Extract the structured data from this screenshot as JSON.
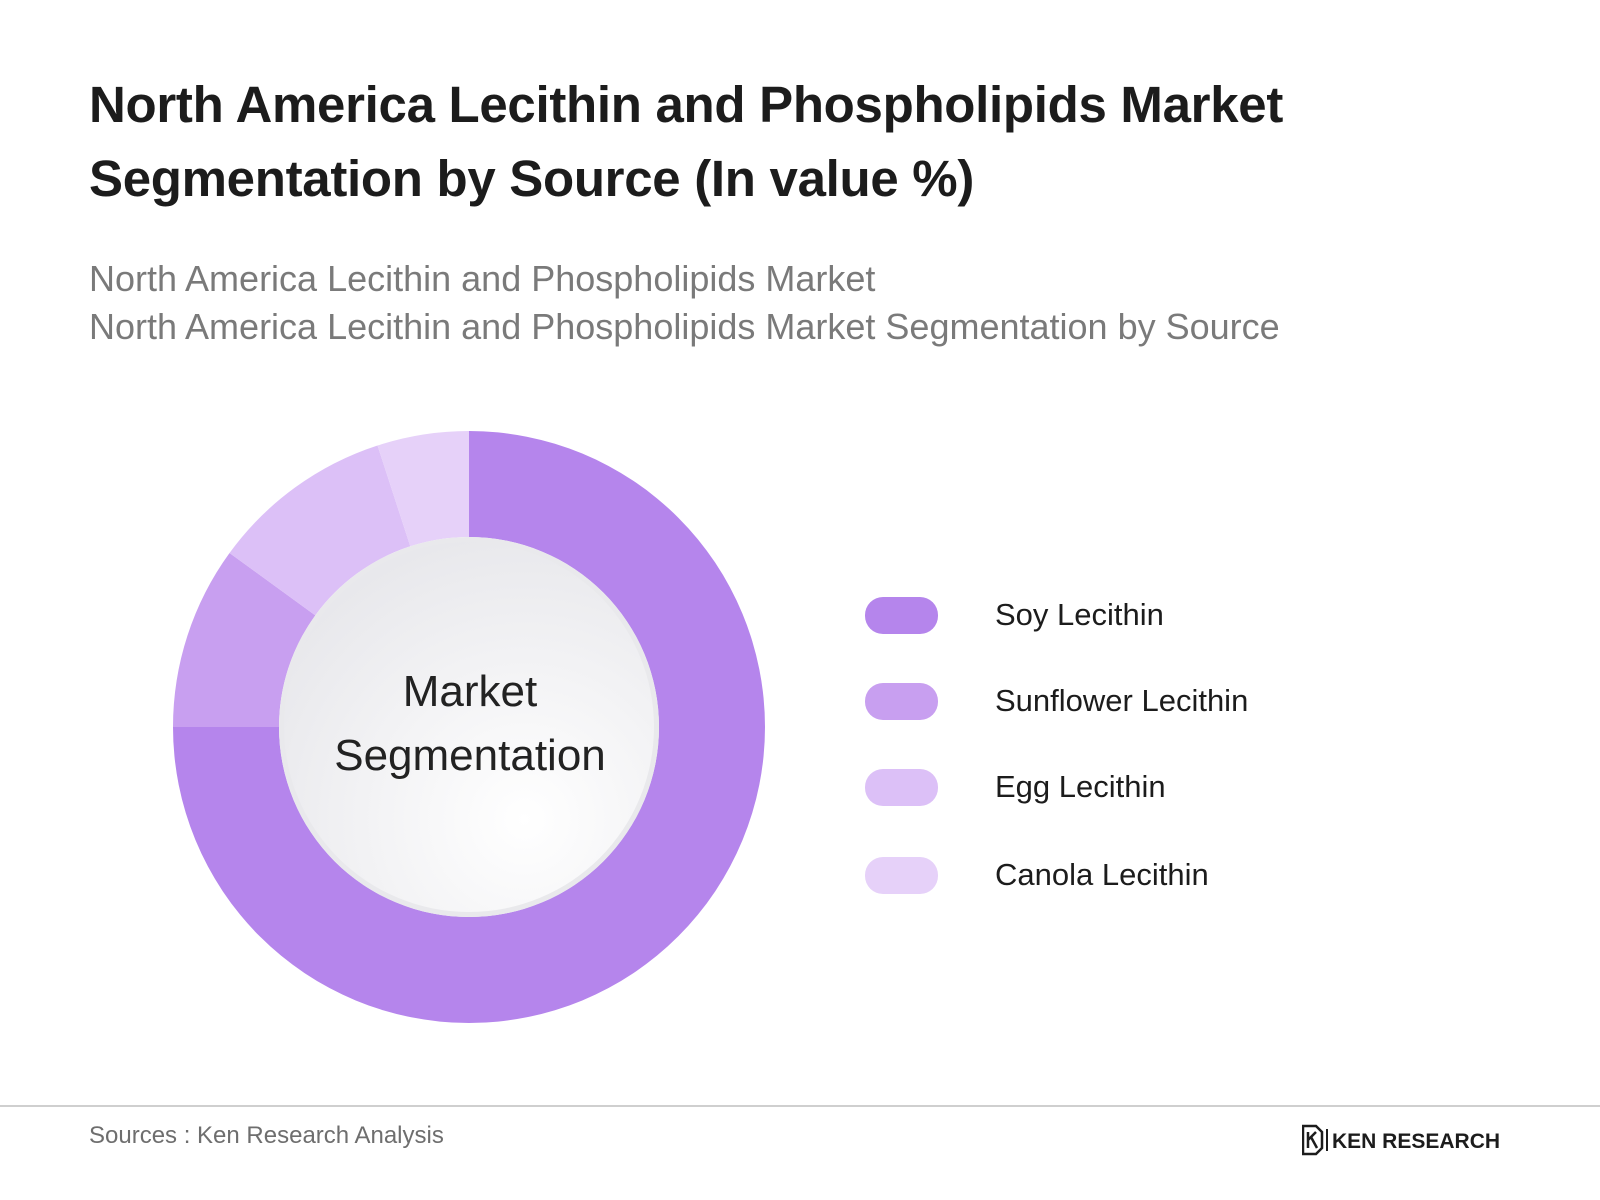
{
  "header": {
    "title_line1": "North America Lecithin and Phospholipids Market",
    "title_line2": "Segmentation by Source (In value %)",
    "subtitle_line1": "North America Lecithin and Phospholipids Market",
    "subtitle_line2": "North America Lecithin and Phospholipids Market Segmentation by Source"
  },
  "chart_data": {
    "type": "pie",
    "variant": "donut",
    "center_label_line1": "Market",
    "center_label_line2": "Segmentation",
    "legend_placement": "right",
    "categories": [
      "Soy Lecithin",
      "Sunflower Lecithin",
      "Egg Lecithin",
      "Canola Lecithin"
    ],
    "values": [
      75,
      10,
      10,
      5
    ],
    "colors": [
      "#b585ec",
      "#c89ff0",
      "#dcc0f7",
      "#e6d1f9"
    ]
  },
  "footer": {
    "source": "Sources : Ken Research Analysis",
    "logo_text": "KEN RESEARCH",
    "logo_icon": "ken-research-k-icon"
  }
}
